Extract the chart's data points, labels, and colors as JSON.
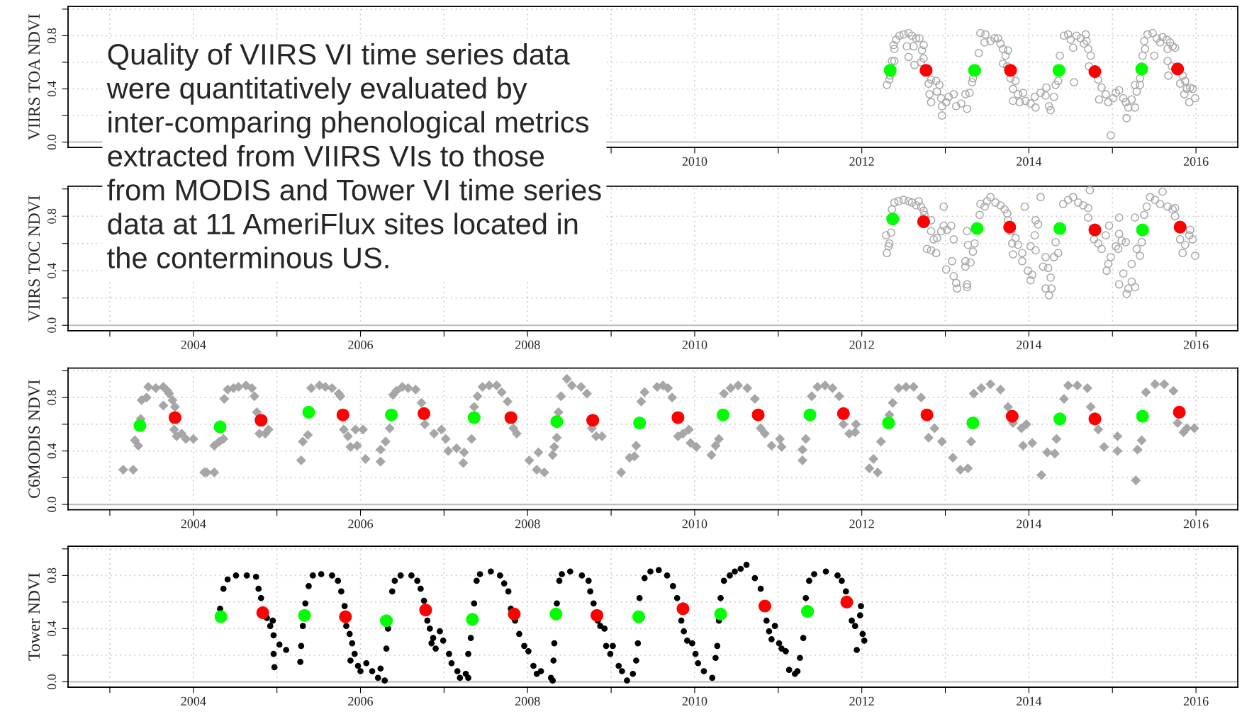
{
  "chart_data": [
    {
      "type": "scatter",
      "ylabel": "VIIRS TOA NDVI",
      "xlim": [
        2002.5,
        2016.5
      ],
      "ylim": [
        -0.04,
        1.02
      ],
      "xticks": [
        {
          "value": 2003,
          "label": null
        },
        {
          "value": 2004,
          "label": null
        },
        {
          "value": 2005,
          "label": null
        },
        {
          "value": 2006,
          "label": null
        },
        {
          "value": 2007,
          "label": null
        },
        {
          "value": 2008,
          "label": null
        },
        {
          "value": 2009,
          "label": null
        },
        2010,
        {
          "value": 2011,
          "label": null
        },
        2012,
        {
          "value": 2013,
          "label": null
        },
        2014,
        {
          "value": 2015,
          "label": null
        },
        2016
      ],
      "yticks": [
        {
          "value": 0,
          "label": "0.0"
        },
        {
          "value": 0.2,
          "label": null
        },
        {
          "value": 0.4,
          "label": "0.4"
        },
        {
          "value": 0.6,
          "label": null
        },
        {
          "value": 0.8,
          "label": "0.8"
        },
        {
          "value": 1.0,
          "label": null
        }
      ],
      "grid": true,
      "ref_lines": [
        {
          "axis": "y",
          "value": 0,
          "color": "#bebebe"
        }
      ],
      "annotations": [
        "Quality of VIIRS VI time series data\nwere quantitatively evaluated by\ninter-comparing phenological metrics\nextracted from VIIRS VIs to those\nfrom MODIS and Tower VI time series\ndata at 11 AmeriFlux sites located in\nthe conterminous US."
      ],
      "series": [
        {
          "color": "#a9a9a9",
          "marker": "circle",
          "x": [
            2012.3,
            2012.33,
            2012.34,
            2012.36,
            2012.39,
            2012.38,
            2012.39,
            2012.41,
            2012.45,
            2012.5,
            2012.56,
            2012.6,
            2012.65,
            2012.69,
            2012.74,
            2012.72,
            2012.74,
            2012.71,
            2012.63,
            2012.56,
            2012.54,
            2012.62,
            2012.8,
            2012.83,
            2012.81,
            2012.83,
            2012.89,
            2012.9,
            2012.93,
            2012.95,
            2012.96,
            2012.96,
            2013.01,
            2013.04,
            2013.1,
            2013.13,
            2013.19,
            2013.26,
            2013.24,
            2013.29,
            2013.32,
            2013.33,
            2013.4,
            2013.42,
            2013.48,
            2013.47,
            2013.54,
            2013.59,
            2013.63,
            2013.66,
            2013.69,
            2013.72,
            2013.75,
            2013.69,
            2013.74,
            2013.78,
            2013.84,
            2013.81,
            2013.87,
            2013.93,
            2013.81,
            2013.89,
            2013.96,
            2014.02,
            2014.08,
            2014.07,
            2014.14,
            2014.2,
            2014.21,
            2014.24,
            2014.26,
            2014.3,
            2014.32,
            2014.35,
            2014.37,
            2014.42,
            2014.47,
            2014.5,
            2014.53,
            2014.57,
            2014.62,
            2014.66,
            2014.69,
            2014.68,
            2014.71,
            2014.74,
            2014.72,
            2014.54,
            2014.83,
            2014.87,
            2014.84,
            2014.92,
            2014.95,
            2014.98,
            2015.01,
            2015.04,
            2015.08,
            2015.13,
            2015.16,
            2015.17,
            2015.19,
            2015.23,
            2015.27,
            2015.29,
            2015.27,
            2015.33,
            2015.33,
            2015.36,
            2015.39,
            2015.38,
            2015.42,
            2015.48,
            2015.53,
            2015.6,
            2015.5,
            2015.57,
            2015.65,
            2015.69,
            2015.66,
            2015.72,
            2015.75,
            2015.66,
            2015.71,
            2015.67,
            2015.84,
            2015.81,
            2015.86,
            2015.89,
            2015.92,
            2015.93,
            2015.96,
            2015.99,
            2015.87
          ],
          "values": [
            0.43,
            0.47,
            0.5,
            0.61,
            0.61,
            0.73,
            0.7,
            0.77,
            0.8,
            0.81,
            0.82,
            0.8,
            0.78,
            0.78,
            0.73,
            0.69,
            0.63,
            0.6,
            0.58,
            0.64,
            0.72,
            0.72,
            0.44,
            0.47,
            0.36,
            0.3,
            0.46,
            0.38,
            0.43,
            0.33,
            0.27,
            0.2,
            0.3,
            0.34,
            0.36,
            0.27,
            0.29,
            0.25,
            0.36,
            0.37,
            0.45,
            0.48,
            0.67,
            0.82,
            0.81,
            0.75,
            0.76,
            0.78,
            0.78,
            0.74,
            0.7,
            0.65,
            0.69,
            0.59,
            0.57,
            0.48,
            0.46,
            0.4,
            0.36,
            0.37,
            0.31,
            0.3,
            0.31,
            0.29,
            0.26,
            0.34,
            0.37,
            0.35,
            0.41,
            0.27,
            0.24,
            0.34,
            0.43,
            0.46,
            0.65,
            0.8,
            0.81,
            0.77,
            0.71,
            0.8,
            0.78,
            0.74,
            0.76,
            0.81,
            0.7,
            0.65,
            0.57,
            0.45,
            0.47,
            0.41,
            0.32,
            0.36,
            0.3,
            0.05,
            0.33,
            0.37,
            0.39,
            0.33,
            0.3,
            0.18,
            0.26,
            0.32,
            0.26,
            0.38,
            0.43,
            0.43,
            0.48,
            0.65,
            0.7,
            0.76,
            0.81,
            0.82,
            0.78,
            0.79,
            0.65,
            0.75,
            0.77,
            0.75,
            0.7,
            0.72,
            0.71,
            0.61,
            0.57,
            0.5,
            0.5,
            0.44,
            0.36,
            0.4,
            0.3,
            0.41,
            0.4,
            0.33,
            0.46
          ]
        },
        {
          "color": "#00ff00",
          "marker": "circle",
          "x": [
            2012.34,
            2013.35,
            2014.36,
            2015.35
          ],
          "values": [
            0.54,
            0.54,
            0.54,
            0.55
          ]
        },
        {
          "color": "#ff0000",
          "marker": "circle",
          "x": [
            2012.77,
            2013.78,
            2014.79,
            2015.78
          ],
          "values": [
            0.54,
            0.54,
            0.53,
            0.55
          ]
        }
      ]
    },
    {
      "type": "scatter",
      "ylabel": "VIIRS TOC NDVI",
      "xlim": [
        2002.5,
        2016.5
      ],
      "ylim": [
        -0.04,
        1.02
      ],
      "xticks": [
        {
          "value": 2003,
          "label": null
        },
        2004,
        {
          "value": 2005,
          "label": null
        },
        2006,
        {
          "value": 2007,
          "label": null
        },
        2008,
        {
          "value": 2009,
          "label": null
        },
        2010,
        {
          "value": 2011,
          "label": null
        },
        2012,
        {
          "value": 2013,
          "label": null
        },
        2014,
        {
          "value": 2015,
          "label": null
        },
        2016
      ],
      "yticks": [
        {
          "value": 0,
          "label": "0.0"
        },
        {
          "value": 0.2,
          "label": null
        },
        {
          "value": 0.4,
          "label": "0.4"
        },
        {
          "value": 0.6,
          "label": null
        },
        {
          "value": 0.8,
          "label": "0.8"
        },
        {
          "value": 1.0,
          "label": null
        }
      ],
      "grid": true,
      "ref_lines": [
        {
          "axis": "y",
          "value": 0,
          "color": "#bebebe"
        }
      ],
      "series": [
        {
          "color": "#a9a9a9",
          "marker": "circle",
          "x": [
            2012.3,
            2012.32,
            2012.33,
            2012.29,
            2012.35,
            2012.36,
            2012.39,
            2012.44,
            2012.5,
            2012.56,
            2012.6,
            2012.65,
            2012.68,
            2012.71,
            2012.74,
            2012.75,
            2012.83,
            2012.83,
            2012.78,
            2012.83,
            2012.89,
            2012.86,
            2012.9,
            2012.95,
            2012.98,
            2012.98,
            2013.01,
            2013.02,
            2013.07,
            2013.1,
            2013.08,
            2013.1,
            2013.13,
            2013.14,
            2013.24,
            2013.24,
            2013.26,
            2013.26,
            2013.3,
            2013.27,
            2013.33,
            2013.35,
            2013.26,
            2013.41,
            2013.42,
            2013.47,
            2013.5,
            2013.54,
            2013.6,
            2013.66,
            2013.71,
            2013.74,
            2013.75,
            2013.78,
            2013.8,
            2013.84,
            2013.87,
            2013.81,
            2013.92,
            2013.92,
            2013.95,
            2014.02,
            2014.08,
            2014.07,
            2014.08,
            2014.11,
            2014.14,
            2013.99,
            2014.02,
            2014.04,
            2014.17,
            2014.2,
            2014.23,
            2014.26,
            2014.2,
            2014.24,
            2014.27,
            2014.3,
            2014.32,
            2014.35,
            2014.41,
            2014.47,
            2014.53,
            2014.59,
            2014.65,
            2014.71,
            2014.71,
            2014.73,
            2014.78,
            2014.83,
            2014.87,
            2014.92,
            2014.96,
            2014.95,
            2014.93,
            2014.98,
            2015.04,
            2015.07,
            2015.08,
            2015.08,
            2015.11,
            2015.16,
            2015.08,
            2015.13,
            2015.17,
            2015.19,
            2015.23,
            2015.27,
            2015.27,
            2015.23,
            2015.29,
            2015.33,
            2015.35,
            2015.38,
            2015.41,
            2015.45,
            2015.51,
            2015.6,
            2015.57,
            2015.66,
            2015.72,
            2015.75,
            2015.75,
            2015.81,
            2015.84,
            2015.87,
            2015.92,
            2015.93,
            2015.96,
            2015.99
          ],
          "values": [
            0.53,
            0.58,
            0.6,
            0.66,
            0.68,
            0.85,
            0.9,
            0.91,
            0.92,
            0.91,
            0.9,
            0.88,
            0.91,
            0.87,
            0.84,
            0.81,
            0.77,
            0.69,
            0.56,
            0.55,
            0.53,
            0.63,
            0.64,
            0.69,
            0.73,
            0.87,
            0.41,
            0.7,
            0.73,
            0.63,
            0.47,
            0.36,
            0.31,
            0.27,
            0.47,
            0.43,
            0.3,
            0.28,
            0.46,
            0.59,
            0.54,
            0.6,
            0.69,
            0.81,
            0.89,
            0.87,
            0.91,
            0.94,
            0.9,
            0.88,
            0.85,
            0.82,
            0.77,
            0.69,
            0.6,
            0.64,
            0.59,
            0.52,
            0.53,
            0.47,
            0.87,
            0.58,
            0.55,
            0.66,
            0.77,
            0.74,
            0.94,
            0.4,
            0.33,
            0.37,
            0.43,
            0.5,
            0.42,
            0.35,
            0.27,
            0.22,
            0.27,
            0.5,
            0.61,
            0.53,
            0.89,
            0.92,
            0.94,
            0.9,
            0.88,
            0.86,
            0.79,
            0.99,
            0.63,
            0.6,
            0.56,
            0.66,
            0.73,
            0.45,
            0.4,
            0.5,
            0.58,
            0.56,
            0.79,
            0.67,
            0.62,
            0.61,
            0.3,
            0.38,
            0.23,
            0.27,
            0.32,
            0.28,
            0.79,
            0.45,
            0.56,
            0.51,
            0.61,
            0.81,
            0.87,
            0.94,
            0.92,
            0.98,
            0.89,
            0.87,
            0.85,
            0.8,
            0.86,
            0.63,
            0.53,
            0.59,
            0.66,
            0.7,
            0.63,
            0.51
          ]
        },
        {
          "color": "#00ff00",
          "marker": "circle",
          "x": [
            2012.37,
            2013.38,
            2014.37,
            2015.36
          ],
          "values": [
            0.78,
            0.71,
            0.71,
            0.7
          ]
        },
        {
          "color": "#ff0000",
          "marker": "circle",
          "x": [
            2012.74,
            2013.77,
            2014.79,
            2015.81
          ],
          "values": [
            0.76,
            0.72,
            0.7,
            0.72
          ]
        }
      ]
    },
    {
      "type": "scatter",
      "ylabel": "C6MODIS NDVI",
      "xlim": [
        2002.5,
        2016.5
      ],
      "ylim": [
        -0.04,
        1.02
      ],
      "xticks": [
        {
          "value": 2003,
          "label": null
        },
        2004,
        {
          "value": 2005,
          "label": null
        },
        2006,
        {
          "value": 2007,
          "label": null
        },
        2008,
        {
          "value": 2009,
          "label": null
        },
        2010,
        {
          "value": 2011,
          "label": null
        },
        2012,
        {
          "value": 2013,
          "label": null
        },
        2014,
        {
          "value": 2015,
          "label": null
        },
        2016
      ],
      "yticks": [
        {
          "value": 0,
          "label": "0.0"
        },
        {
          "value": 0.2,
          "label": null
        },
        {
          "value": 0.4,
          "label": "0.4"
        },
        {
          "value": 0.6,
          "label": null
        },
        {
          "value": 0.8,
          "label": "0.8"
        },
        {
          "value": 1.0,
          "label": null
        }
      ],
      "grid": true,
      "ref_lines": [
        {
          "axis": "y",
          "value": 0,
          "color": "#bebebe"
        }
      ],
      "series": [
        {
          "color": "#a6a6a6",
          "marker": "diamond",
          "x": [
            2003.16,
            2003.28,
            2003.3,
            2003.34,
            2003.37,
            2003.38,
            2003.44,
            2003.46,
            2003.55,
            2003.64,
            2003.69,
            2003.64,
            2003.71,
            2003.75,
            2003.78,
            2003.77,
            2003.8,
            2003.86,
            2003.91,
            2004.0,
            2004.13,
            2004.16,
            2004.25,
            2004.25,
            2004.31,
            2004.36,
            2004.37,
            2004.41,
            2004.48,
            2004.54,
            2004.63,
            2004.7,
            2004.73,
            2004.76,
            2004.79,
            2004.86,
            2004.9,
            2005.29,
            2005.31,
            2005.37,
            2005.41,
            2005.51,
            2005.58,
            2005.66,
            2005.74,
            2005.76,
            2005.8,
            2005.85,
            2005.88,
            2005.94,
            2005.96,
            2006.03,
            2006.06,
            2006.24,
            2006.24,
            2006.3,
            2006.35,
            2006.39,
            2006.43,
            2006.5,
            2006.57,
            2006.66,
            2006.73,
            2006.77,
            2006.88,
            2006.97,
            2007.02,
            2007.05,
            2007.15,
            2007.24,
            2007.23,
            2007.33,
            2007.36,
            2007.4,
            2007.46,
            2007.54,
            2007.63,
            2007.69,
            2007.76,
            2007.83,
            2007.87,
            2008.02,
            2008.11,
            2008.13,
            2008.2,
            2008.3,
            2008.32,
            2008.35,
            2008.37,
            2008.4,
            2008.47,
            2008.53,
            2008.64,
            2008.71,
            2008.77,
            2008.82,
            2008.89,
            2009.12,
            2009.22,
            2009.28,
            2009.3,
            2009.36,
            2009.4,
            2009.55,
            2009.62,
            2009.68,
            2009.73,
            2009.8,
            2009.86,
            2009.93,
            2009.95,
            2010.02,
            2010.2,
            2010.25,
            2010.29,
            2010.35,
            2010.43,
            2010.52,
            2010.63,
            2010.72,
            2010.79,
            2010.84,
            2010.92,
            2011.02,
            2011.04,
            2011.29,
            2011.29,
            2011.33,
            2011.4,
            2011.47,
            2011.56,
            2011.65,
            2011.73,
            2011.78,
            2011.85,
            2011.92,
            2011.93,
            2012.09,
            2012.14,
            2012.19,
            2012.23,
            2012.33,
            2012.37,
            2012.44,
            2012.53,
            2012.62,
            2012.71,
            2012.8,
            2012.87,
            2012.96,
            2013.09,
            2013.18,
            2013.27,
            2013.31,
            2013.34,
            2013.43,
            2013.54,
            2013.66,
            2013.75,
            2013.81,
            2013.91,
            2013.97,
            2013.93,
            2014.04,
            2014.15,
            2014.22,
            2014.31,
            2014.33,
            2014.42,
            2014.47,
            2014.58,
            2014.7,
            2014.74,
            2014.83,
            2014.9,
            2015.06,
            2015.06,
            2015.28,
            2015.3,
            2015.35,
            2015.4,
            2015.51,
            2015.62,
            2015.73,
            2015.78,
            2015.85,
            2015.89,
            2015.98
          ],
          "values": [
            0.26,
            0.26,
            0.48,
            0.44,
            0.64,
            0.78,
            0.8,
            0.88,
            0.87,
            0.88,
            0.85,
            0.74,
            0.83,
            0.78,
            0.73,
            0.56,
            0.51,
            0.53,
            0.49,
            0.49,
            0.24,
            0.24,
            0.24,
            0.44,
            0.47,
            0.49,
            0.79,
            0.86,
            0.87,
            0.88,
            0.89,
            0.87,
            0.81,
            0.69,
            0.53,
            0.53,
            0.56,
            0.33,
            0.47,
            0.52,
            0.87,
            0.89,
            0.88,
            0.87,
            0.83,
            0.81,
            0.56,
            0.51,
            0.43,
            0.56,
            0.44,
            0.56,
            0.34,
            0.32,
            0.41,
            0.47,
            0.57,
            0.82,
            0.85,
            0.88,
            0.87,
            0.86,
            0.76,
            0.6,
            0.53,
            0.56,
            0.49,
            0.4,
            0.42,
            0.39,
            0.31,
            0.49,
            0.73,
            0.81,
            0.88,
            0.89,
            0.89,
            0.84,
            0.77,
            0.57,
            0.53,
            0.33,
            0.26,
            0.39,
            0.24,
            0.37,
            0.43,
            0.5,
            0.69,
            0.81,
            0.94,
            0.89,
            0.88,
            0.83,
            0.57,
            0.51,
            0.51,
            0.24,
            0.35,
            0.36,
            0.44,
            0.77,
            0.84,
            0.88,
            0.89,
            0.87,
            0.8,
            0.51,
            0.53,
            0.56,
            0.46,
            0.43,
            0.37,
            0.44,
            0.49,
            0.83,
            0.87,
            0.89,
            0.87,
            0.79,
            0.57,
            0.53,
            0.44,
            0.49,
            0.43,
            0.33,
            0.41,
            0.49,
            0.81,
            0.88,
            0.89,
            0.87,
            0.81,
            0.6,
            0.53,
            0.54,
            0.6,
            0.27,
            0.34,
            0.24,
            0.47,
            0.67,
            0.76,
            0.87,
            0.88,
            0.88,
            0.8,
            0.5,
            0.57,
            0.47,
            0.35,
            0.26,
            0.27,
            0.47,
            0.83,
            0.87,
            0.9,
            0.86,
            0.73,
            0.61,
            0.57,
            0.6,
            0.44,
            0.46,
            0.22,
            0.39,
            0.38,
            0.49,
            0.79,
            0.89,
            0.89,
            0.87,
            0.73,
            0.56,
            0.43,
            0.51,
            0.4,
            0.18,
            0.41,
            0.48,
            0.84,
            0.9,
            0.9,
            0.85,
            0.61,
            0.54,
            0.57,
            0.57
          ]
        },
        {
          "color": "#00ff00",
          "marker": "circle",
          "x": [
            2003.36,
            2004.32,
            2005.38,
            2006.37,
            2007.36,
            2008.35,
            2009.34,
            2010.34,
            2011.38,
            2012.32,
            2013.33,
            2014.37,
            2015.36
          ],
          "values": [
            0.59,
            0.58,
            0.69,
            0.67,
            0.65,
            0.62,
            0.61,
            0.67,
            0.67,
            0.61,
            0.61,
            0.64,
            0.66
          ]
        },
        {
          "color": "#ff0000",
          "marker": "circle",
          "x": [
            2003.78,
            2004.81,
            2005.79,
            2006.76,
            2007.8,
            2008.78,
            2009.8,
            2010.76,
            2011.78,
            2012.78,
            2013.8,
            2014.79,
            2015.8
          ],
          "values": [
            0.65,
            0.63,
            0.67,
            0.68,
            0.65,
            0.63,
            0.65,
            0.67,
            0.68,
            0.67,
            0.66,
            0.64,
            0.69
          ]
        }
      ]
    },
    {
      "type": "scatter",
      "ylabel": "Tower NDVI",
      "xlim": [
        2002.5,
        2016.5
      ],
      "ylim": [
        -0.04,
        1.02
      ],
      "xticks": [
        {
          "value": 2003,
          "label": null
        },
        2004,
        {
          "value": 2005,
          "label": null
        },
        2006,
        {
          "value": 2007,
          "label": null
        },
        2008,
        {
          "value": 2009,
          "label": null
        },
        2010,
        {
          "value": 2011,
          "label": null
        },
        2012,
        {
          "value": 2013,
          "label": null
        },
        2014,
        {
          "value": 2015,
          "label": null
        },
        2016
      ],
      "yticks": [
        {
          "value": 0,
          "label": "0.0"
        },
        {
          "value": 0.2,
          "label": null
        },
        {
          "value": 0.4,
          "label": "0.4"
        },
        {
          "value": 0.6,
          "label": null
        },
        {
          "value": 0.8,
          "label": "0.8"
        },
        {
          "value": 1.0,
          "label": null
        }
      ],
      "grid": true,
      "ref_lines": [
        {
          "axis": "y",
          "value": 0,
          "color": "#bebebe"
        }
      ],
      "series": [
        {
          "color": "#000000",
          "marker": "circle",
          "x": [
            2004.32,
            2004.36,
            2004.41,
            2004.51,
            2004.64,
            2004.75,
            2004.78,
            2004.81,
            2004.88,
            2004.92,
            2004.95,
            2004.96,
            2005.03,
            2004.96,
            2004.97,
            2005.11,
            2005.28,
            2005.29,
            2005.31,
            2005.34,
            2005.38,
            2005.43,
            2005.53,
            2005.66,
            2005.73,
            2005.77,
            2005.81,
            2005.83,
            2005.87,
            2005.9,
            2005.88,
            2005.93,
            2005.97,
            2006.0,
            2006.07,
            2006.14,
            2006.21,
            2006.24,
            2006.29,
            2006.31,
            2006.33,
            2006.38,
            2006.41,
            2006.48,
            2006.61,
            2006.68,
            2006.72,
            2006.76,
            2006.8,
            2006.83,
            2006.87,
            2006.9,
            2006.85,
            2006.95,
            2006.99,
            2007.06,
            2007.09,
            2007.16,
            2007.19,
            2007.26,
            2007.29,
            2007.29,
            2007.32,
            2007.36,
            2007.39,
            2007.43,
            2007.56,
            2007.67,
            2007.72,
            2007.77,
            2007.8,
            2007.85,
            2007.9,
            2007.96,
            2008.01,
            2008.07,
            2008.11,
            2008.16,
            2008.28,
            2008.3,
            2008.31,
            2008.32,
            2008.35,
            2008.38,
            2008.41,
            2008.51,
            2008.65,
            2008.73,
            2008.75,
            2008.79,
            2008.84,
            2008.87,
            2008.92,
            2008.94,
            2008.99,
            2009.02,
            2009.09,
            2009.13,
            2009.19,
            2009.26,
            2009.3,
            2009.32,
            2009.34,
            2009.4,
            2009.47,
            2009.57,
            2009.67,
            2009.74,
            2009.79,
            2009.84,
            2009.87,
            2009.91,
            2009.97,
            2010.01,
            2010.04,
            2010.11,
            2010.21,
            2010.25,
            2010.27,
            2010.29,
            2010.31,
            2010.35,
            2010.42,
            2010.48,
            2010.55,
            2010.62,
            2010.72,
            2010.79,
            2010.82,
            2010.86,
            2010.89,
            2010.92,
            2010.96,
            2011.01,
            2011.04,
            2011.09,
            2011.13,
            2011.2,
            2011.23,
            2011.26,
            2011.3,
            2011.33,
            2011.37,
            2011.43,
            2011.57,
            2011.71,
            2011.76,
            2011.81,
            2011.88,
            2011.92,
            2011.94,
            2011.98,
            2011.99,
            2012.01,
            2012.03
          ],
          "values": [
            0.55,
            0.7,
            0.77,
            0.8,
            0.8,
            0.79,
            0.7,
            0.63,
            0.48,
            0.42,
            0.46,
            0.35,
            0.28,
            0.21,
            0.11,
            0.24,
            0.15,
            0.27,
            0.42,
            0.59,
            0.72,
            0.8,
            0.81,
            0.8,
            0.76,
            0.68,
            0.57,
            0.42,
            0.36,
            0.29,
            0.16,
            0.21,
            0.12,
            0.08,
            0.14,
            0.08,
            0.03,
            0.1,
            0.01,
            0.25,
            0.4,
            0.68,
            0.76,
            0.8,
            0.8,
            0.76,
            0.7,
            0.61,
            0.46,
            0.4,
            0.33,
            0.25,
            0.29,
            0.38,
            0.31,
            0.21,
            0.14,
            0.08,
            0.03,
            0.06,
            0.03,
            0.21,
            0.33,
            0.59,
            0.76,
            0.81,
            0.83,
            0.8,
            0.74,
            0.68,
            0.55,
            0.46,
            0.36,
            0.27,
            0.23,
            0.12,
            0.06,
            0.08,
            0.03,
            0.01,
            0.16,
            0.29,
            0.59,
            0.76,
            0.81,
            0.83,
            0.8,
            0.76,
            0.68,
            0.59,
            0.46,
            0.42,
            0.4,
            0.27,
            0.21,
            0.27,
            0.12,
            0.08,
            0.01,
            0.06,
            0.16,
            0.29,
            0.63,
            0.78,
            0.83,
            0.84,
            0.8,
            0.72,
            0.63,
            0.46,
            0.38,
            0.31,
            0.29,
            0.21,
            0.14,
            0.08,
            0.03,
            0.18,
            0.27,
            0.46,
            0.63,
            0.76,
            0.8,
            0.83,
            0.85,
            0.88,
            0.78,
            0.7,
            null,
            0.46,
            0.38,
            0.32,
            0.42,
            0.29,
            0.25,
            0.23,
            0.09,
            0.06,
            0.08,
            0.18,
            0.33,
            0.63,
            0.76,
            0.81,
            0.83,
            0.8,
            0.76,
            0.68,
            0.46,
            0.42,
            0.24,
            0.5,
            0.57,
            0.36,
            0.31
          ]
        },
        {
          "color": "#00ff00",
          "marker": "circle",
          "x": [
            2004.33,
            2005.33,
            2006.31,
            2007.34,
            2008.34,
            2009.33,
            2010.31,
            2011.35
          ],
          "values": [
            0.49,
            0.5,
            0.46,
            0.47,
            0.51,
            0.49,
            0.51,
            0.53
          ]
        },
        {
          "color": "#ff0000",
          "marker": "circle",
          "x": [
            2004.83,
            2005.82,
            2006.78,
            2007.84,
            2008.83,
            2009.86,
            2010.84,
            2011.82
          ],
          "values": [
            0.52,
            0.49,
            0.54,
            0.51,
            0.5,
            0.55,
            0.57,
            0.6
          ]
        }
      ]
    }
  ]
}
